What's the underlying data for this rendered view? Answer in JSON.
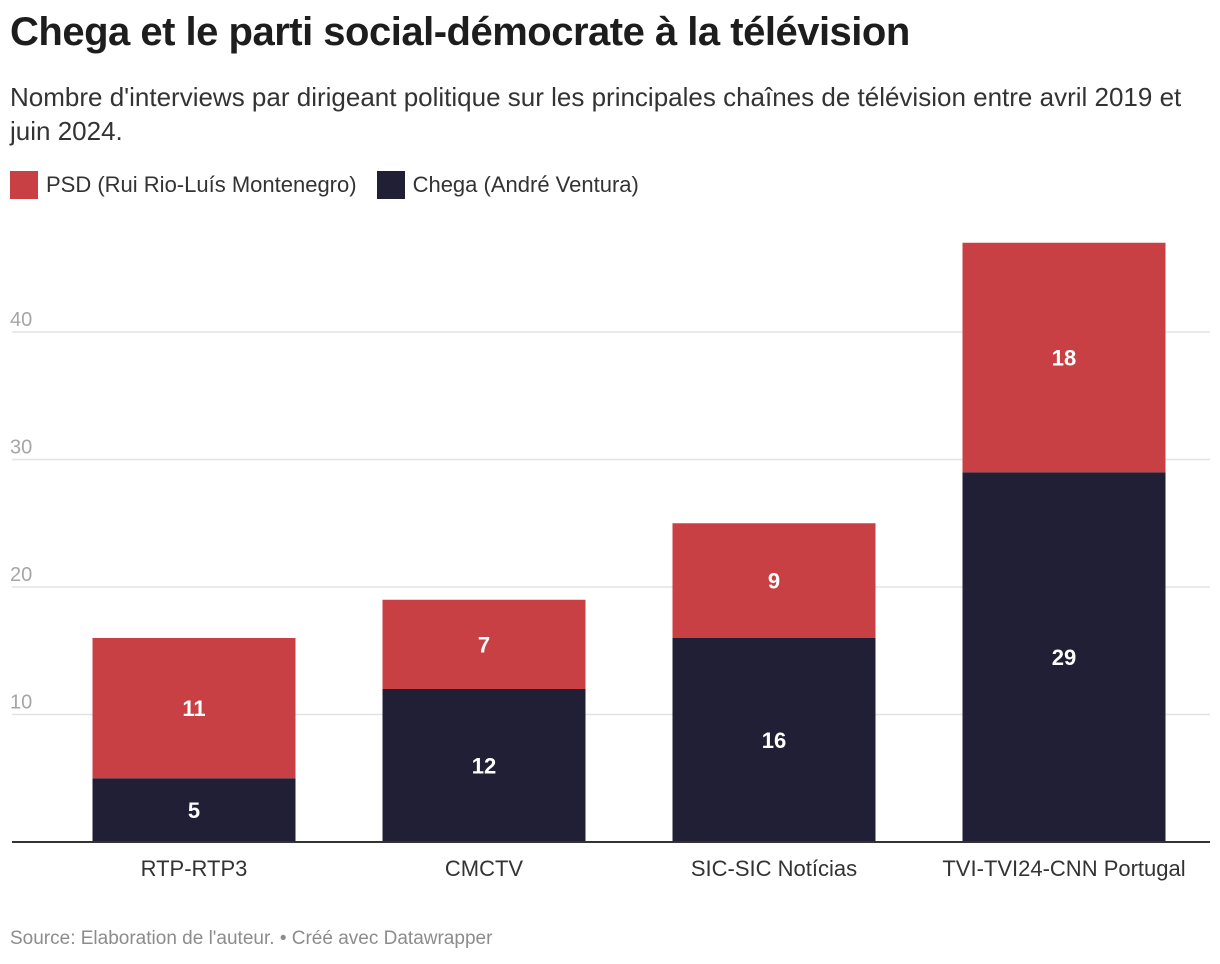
{
  "title": "Chega et le parti social-démocrate à la télévision",
  "subtitle": "Nombre d'interviews par dirigeant politique sur les principales chaînes de télévision entre avril 2019 et juin 2024.",
  "footer": {
    "source": "Source: Elaboration de l'auteur.",
    "separator": "•",
    "credit": "Créé avec Datawrapper"
  },
  "colors": {
    "psd": "#c84043",
    "chega": "#211f35",
    "grid": "#e3e3e3",
    "tick_label": "#a6a6a6",
    "axis": "#333333"
  },
  "chart_data": {
    "type": "bar",
    "stacked": true,
    "categories": [
      "RTP-RTP3",
      "CMCTV",
      "SIC-SIC Notícias",
      "TVI-TVI24-CNN Portugal"
    ],
    "series": [
      {
        "name": "Chega (André Ventura)",
        "key": "chega",
        "values": [
          5,
          12,
          16,
          29
        ]
      },
      {
        "name": "PSD (Rui Rio-Luís Montenegro)",
        "key": "psd",
        "values": [
          11,
          7,
          9,
          18
        ]
      }
    ],
    "legend_order": [
      "psd",
      "chega"
    ],
    "legend_position": "top-left",
    "ylim": [
      0,
      47
    ],
    "yticks": [
      10,
      20,
      30,
      40
    ],
    "grid": true,
    "title": "Chega et le parti social-démocrate à la télévision",
    "xlabel": "",
    "ylabel": ""
  }
}
